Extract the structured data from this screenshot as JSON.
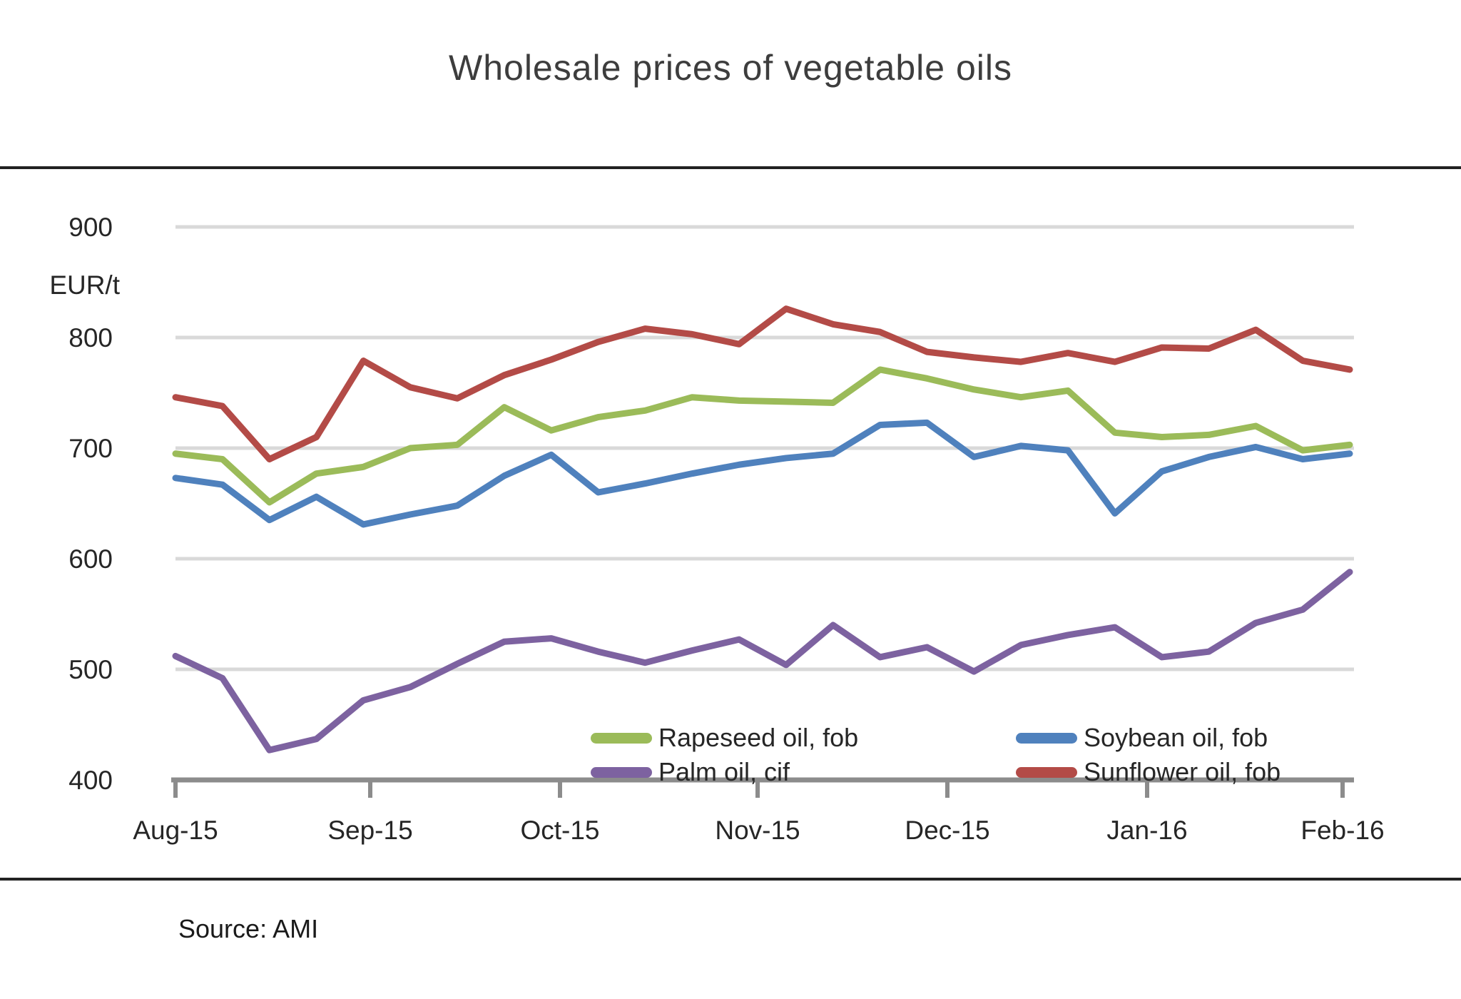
{
  "title": "Wholesale prices of vegetable oils",
  "source_text": "Source: AMI",
  "chart_data": {
    "type": "line",
    "title": "Wholesale prices of vegetable oils",
    "ylabel": "EUR/t",
    "xlabel": "",
    "ylim": [
      400,
      900
    ],
    "grid": "horizontal",
    "legend_position": "bottom-inside-two-columns",
    "y_tick_labels": [
      "900",
      "800",
      "700",
      "600",
      "500",
      "400"
    ],
    "y_ticks": [
      900,
      800,
      700,
      600,
      500,
      400
    ],
    "x_tick_labels": [
      "Aug-15",
      "Sep-15",
      "Oct-15",
      "Nov-15",
      "Dec-15",
      "Jan-16",
      "Feb-16"
    ],
    "x_unit": "weekly observations",
    "series": [
      {
        "name": "Rapeseed oil, fob",
        "color": "#9bbb59",
        "values": [
          695,
          690,
          651,
          677,
          683,
          700,
          703,
          737,
          716,
          728,
          734,
          746,
          743,
          742,
          741,
          771,
          763,
          753,
          746,
          752,
          714,
          710,
          712,
          720,
          698,
          703
        ]
      },
      {
        "name": "Soybean oil, fob",
        "color": "#4f81bd",
        "values": [
          673,
          667,
          635,
          656,
          631,
          640,
          648,
          675,
          694,
          660,
          668,
          677,
          685,
          691,
          695,
          721,
          723,
          692,
          702,
          698,
          641,
          679,
          692,
          701,
          690,
          695
        ]
      },
      {
        "name": "Palm oil, cif",
        "color": "#7d62a0",
        "values": [
          512,
          492,
          427,
          437,
          472,
          484,
          505,
          525,
          528,
          516,
          506,
          517,
          527,
          504,
          540,
          511,
          520,
          498,
          522,
          531,
          538,
          511,
          516,
          542,
          554,
          588
        ]
      },
      {
        "name": "Sunflower oil, fob",
        "color": "#b34b47",
        "values": [
          746,
          738,
          690,
          710,
          779,
          755,
          745,
          766,
          780,
          796,
          808,
          803,
          794,
          826,
          812,
          805,
          787,
          782,
          778,
          786,
          778,
          791,
          790,
          807,
          779,
          771
        ]
      }
    ],
    "colors": {
      "gridline": "#d9d9d9",
      "axis": "#8c8c8c",
      "text": "#262626"
    }
  }
}
